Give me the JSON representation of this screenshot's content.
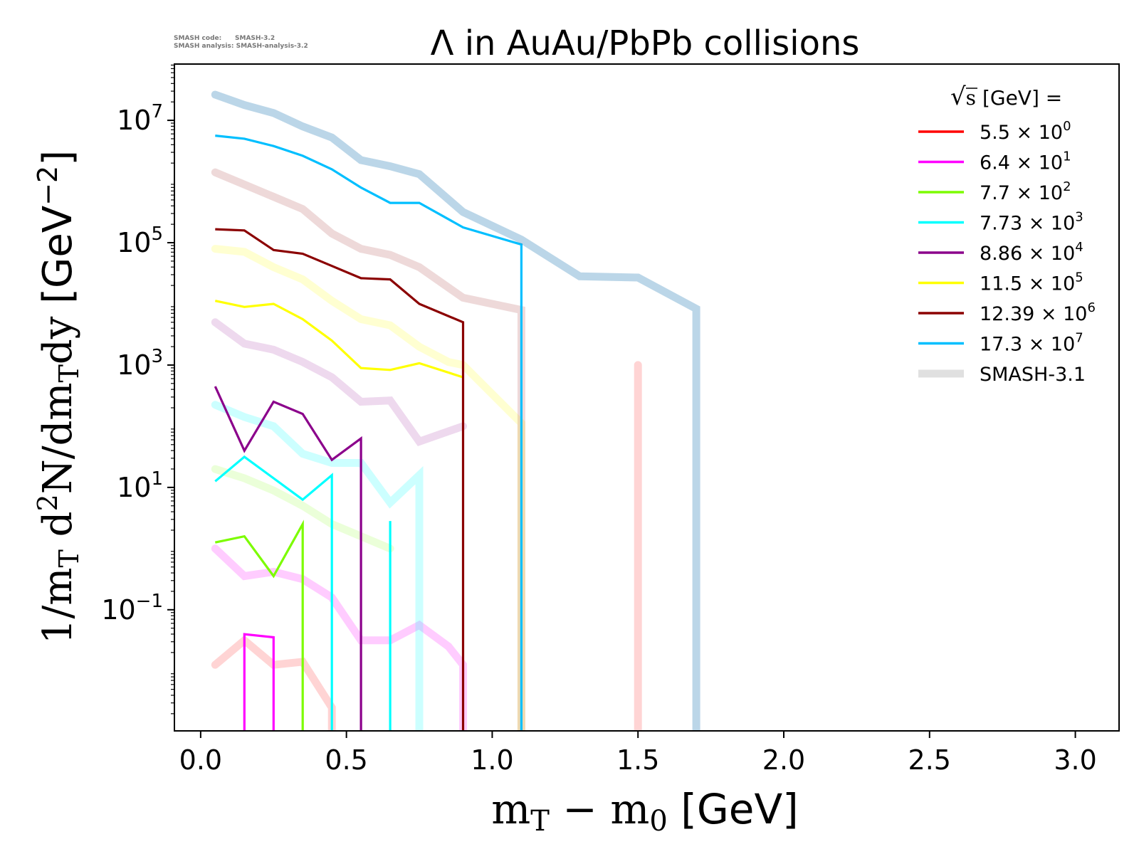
{
  "credits": {
    "line1": "SMASH code:      SMASH-3.2",
    "line2": "SMASH analysis: SMASH-analysis-3.2"
  },
  "chart_data": {
    "type": "line",
    "title": "Λ in AuAu/PbPb collisions",
    "xlabel": {
      "main": "m",
      "sub": "T",
      "minus": " − m",
      "sub2": "0",
      "unit": " [GeV]"
    },
    "ylabel": {
      "p1": "1/m",
      "s1": "T",
      "p2": " d",
      "sup": "2",
      "p3": "N/dm",
      "s2": "T",
      "p4": "dy",
      "unit": " [GeV",
      "uexp": "−2",
      "uclose": "]"
    },
    "xlim": [
      -0.09,
      3.15
    ],
    "ylim_log10": [
      -2.98,
      7.92
    ],
    "log_y": true,
    "x_ticks": [
      "0.0",
      "0.5",
      "1.0",
      "1.5",
      "2.0",
      "2.5",
      "3.0"
    ],
    "y_ticks": [
      {
        "value": 7,
        "label": "10",
        "exp": "7"
      },
      {
        "value": 5,
        "label": "10",
        "exp": "5"
      },
      {
        "value": 3,
        "label": "10",
        "exp": "3"
      },
      {
        "value": 1,
        "label": "10",
        "exp": "1"
      },
      {
        "value": -1,
        "label": "10",
        "exp": "−1"
      }
    ],
    "legend": {
      "position": "top-right",
      "title": "s",
      "title_suffix": "  [GeV] =",
      "entries": [
        {
          "mant": "5.5",
          "exp": "0",
          "color": "#ff0000"
        },
        {
          "mant": "6.4",
          "exp": "1",
          "color": "#ff00ff"
        },
        {
          "mant": "7.7",
          "exp": "2",
          "color": "#7cfc00"
        },
        {
          "mant": "7.73",
          "exp": "3",
          "color": "#00ffff"
        },
        {
          "mant": "8.86",
          "exp": "4",
          "color": "#8b008b"
        },
        {
          "mant": "11.5",
          "exp": "5",
          "color": "#ffff00"
        },
        {
          "mant": "12.39",
          "exp": "6",
          "color": "#8b0000"
        },
        {
          "mant": "17.3",
          "exp": "7",
          "color": "#00bfff"
        }
      ],
      "reference_label": "SMASH-3.1",
      "reference_color": "#cccccc"
    },
    "series": [
      {
        "color": "#ff0000",
        "kind": "current",
        "x": [],
        "log10_y": []
      },
      {
        "color": "#ff0000",
        "kind": "reference",
        "opacity": 0.17,
        "x": [
          0.05,
          0.15,
          0.25,
          0.35,
          0.45,
          0.45,
          null,
          1.5,
          1.5
        ],
        "log10_y": [
          -1.9,
          -1.5,
          -1.9,
          -1.85,
          -2.6,
          -3.0,
          null,
          3.0,
          -3.0
        ]
      },
      {
        "color": "#ff00ff",
        "kind": "current",
        "x": [
          0.15,
          0.15,
          0.25,
          0.25
        ],
        "log10_y": [
          -3.0,
          -1.4,
          -1.45,
          -3.0
        ]
      },
      {
        "color": "#ff00ff",
        "kind": "reference",
        "opacity": 0.2,
        "x": [
          0.05,
          0.15,
          0.25,
          0.35,
          0.45,
          0.55,
          0.65,
          0.75,
          0.85,
          0.9,
          0.9
        ],
        "log10_y": [
          0.0,
          -0.45,
          -0.38,
          -0.5,
          -0.8,
          -1.5,
          -1.5,
          -1.25,
          -1.6,
          -1.9,
          -3.0
        ]
      },
      {
        "color": "#7cfc00",
        "kind": "current",
        "x": [
          0.05,
          0.15,
          0.25,
          0.35,
          0.35
        ],
        "log10_y": [
          0.1,
          0.2,
          -0.45,
          0.4,
          -3.0
        ]
      },
      {
        "color": "#7cfc00",
        "kind": "reference",
        "opacity": 0.15,
        "x": [
          0.05,
          0.15,
          0.25,
          0.35,
          0.45,
          0.55,
          0.65
        ],
        "log10_y": [
          1.3,
          1.15,
          0.95,
          0.7,
          0.4,
          0.2,
          0.0
        ]
      },
      {
        "color": "#00ffff",
        "kind": "current",
        "x": [
          0.05,
          0.15,
          0.25,
          0.35,
          0.45,
          0.45,
          null,
          0.65,
          0.65
        ],
        "log10_y": [
          1.1,
          1.5,
          1.15,
          0.8,
          1.2,
          -3.0,
          null,
          0.45,
          -3.0
        ]
      },
      {
        "color": "#00ffff",
        "kind": "reference",
        "opacity": 0.2,
        "x": [
          0.05,
          0.15,
          0.25,
          0.35,
          0.45,
          0.55,
          0.65,
          0.75,
          0.75
        ],
        "log10_y": [
          2.35,
          2.15,
          2.0,
          1.55,
          1.4,
          1.4,
          0.75,
          1.2,
          -3.0
        ]
      },
      {
        "color": "#8b008b",
        "kind": "current",
        "x": [
          0.05,
          0.15,
          0.25,
          0.35,
          0.45,
          0.55,
          0.55
        ],
        "log10_y": [
          2.65,
          1.6,
          2.4,
          2.2,
          1.45,
          1.8,
          -3.0
        ]
      },
      {
        "color": "#8b008b",
        "kind": "reference",
        "opacity": 0.15,
        "x": [
          0.05,
          0.15,
          0.25,
          0.35,
          0.45,
          0.55,
          0.65,
          0.75,
          0.9
        ],
        "log10_y": [
          3.7,
          3.35,
          3.25,
          3.05,
          2.8,
          2.4,
          2.42,
          1.75,
          2.0
        ]
      },
      {
        "color": "#ffff00",
        "kind": "current",
        "x": [
          0.05,
          0.15,
          0.25,
          0.35,
          0.45,
          0.55,
          0.65,
          0.75,
          0.9
        ],
        "log10_y": [
          4.05,
          3.95,
          4.0,
          3.75,
          3.4,
          2.95,
          2.92,
          3.03,
          2.8
        ]
      },
      {
        "color": "#ffff00",
        "kind": "reference",
        "opacity": 0.18,
        "x": [
          0.05,
          0.15,
          0.25,
          0.35,
          0.45,
          0.55,
          0.65,
          0.75,
          0.85,
          0.9,
          1.1,
          1.1
        ],
        "log10_y": [
          4.9,
          4.85,
          4.6,
          4.4,
          4.05,
          3.75,
          3.65,
          3.3,
          3.05,
          3.0,
          2.05,
          -3.0
        ]
      },
      {
        "color": "#8b0000",
        "kind": "current",
        "x": [
          0.05,
          0.15,
          0.25,
          0.35,
          0.45,
          0.55,
          0.65,
          0.75,
          0.9,
          0.9
        ],
        "log10_y": [
          5.22,
          5.2,
          4.88,
          4.82,
          4.62,
          4.42,
          4.4,
          4.0,
          3.7,
          -3.0
        ]
      },
      {
        "color": "#8b0000",
        "kind": "reference",
        "opacity": 0.15,
        "x": [
          0.05,
          0.15,
          0.25,
          0.35,
          0.45,
          0.55,
          0.65,
          0.75,
          0.9,
          1.1,
          1.1
        ],
        "log10_y": [
          6.15,
          5.95,
          5.75,
          5.55,
          5.15,
          4.9,
          4.8,
          4.6,
          4.1,
          3.9,
          -3.0
        ]
      },
      {
        "color": "#00bfff",
        "kind": "current",
        "x": [
          0.05,
          0.15,
          0.25,
          0.35,
          0.45,
          0.55,
          0.65,
          0.75,
          0.9,
          1.1,
          1.1
        ],
        "log10_y": [
          6.75,
          6.7,
          6.58,
          6.42,
          6.2,
          5.9,
          5.65,
          5.65,
          5.25,
          4.97,
          -3.0
        ]
      },
      {
        "color": "#1f77b4",
        "kind": "reference",
        "opacity": 0.3,
        "x": [
          0.05,
          0.15,
          0.25,
          0.35,
          0.45,
          0.55,
          0.65,
          0.75,
          0.9,
          1.1,
          1.3,
          1.5,
          1.7,
          1.7
        ],
        "log10_y": [
          7.42,
          7.25,
          7.12,
          6.9,
          6.72,
          6.35,
          6.25,
          6.12,
          5.5,
          5.05,
          4.45,
          4.43,
          3.92,
          -3.0
        ]
      }
    ]
  }
}
